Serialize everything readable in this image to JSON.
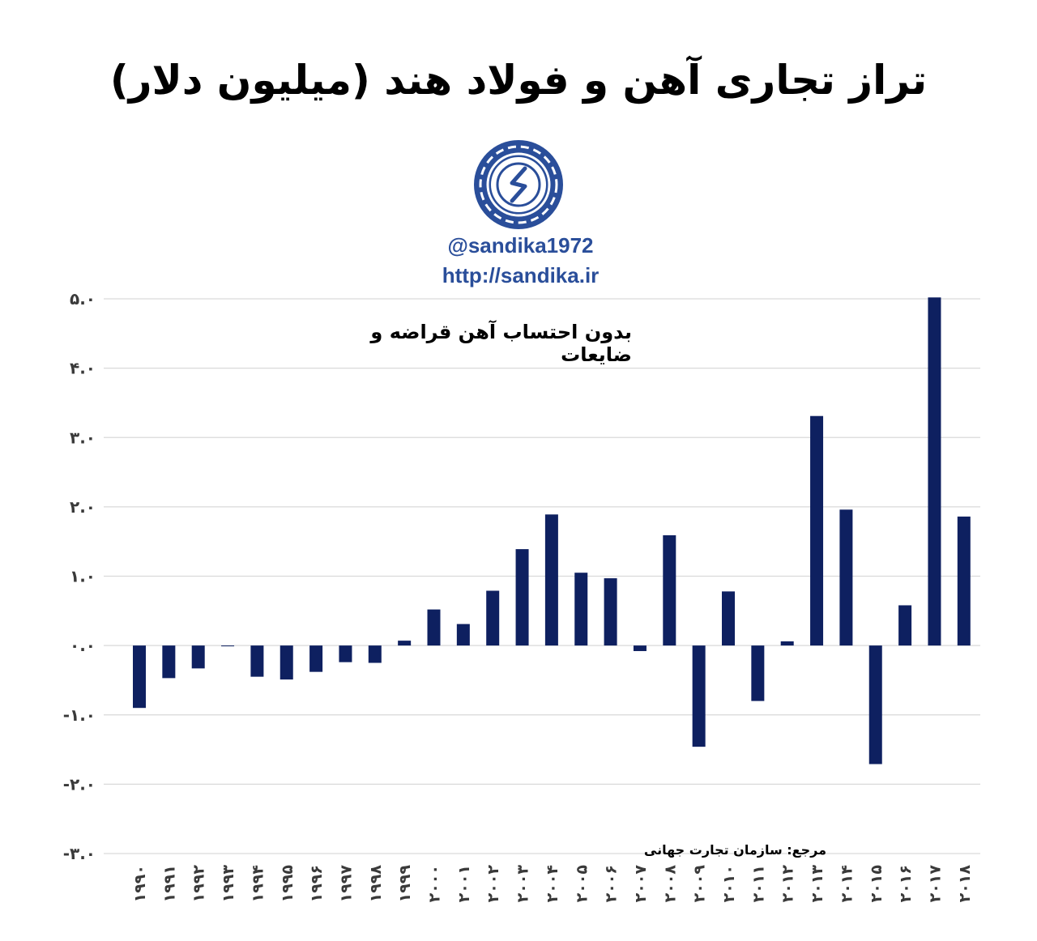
{
  "title": "تراز تجاری آهن و فولاد هند (میلیون دلار)",
  "logo": {
    "handle": "@sandika1972",
    "url": "http://sandika.ir",
    "color": "#2a4e9a"
  },
  "subtitle": "بدون احتساب آهن قراضه و ضایعات",
  "source": "مرجع: سازمان تجارت جهانی",
  "chart_data": {
    "type": "bar",
    "title": "تراز تجاری آهن و فولاد هند (میلیون دلار)",
    "xlabel": "",
    "ylabel": "",
    "ylim": [
      -3,
      5
    ],
    "grid": true,
    "legend": "none",
    "bar_color": "#0e2060",
    "gridline_color": "#d9d9d9",
    "y_ticks": [
      {
        "value": 5,
        "label": "۵.۰"
      },
      {
        "value": 4,
        "label": "۴.۰"
      },
      {
        "value": 3,
        "label": "۳.۰"
      },
      {
        "value": 2,
        "label": "۲.۰"
      },
      {
        "value": 1,
        "label": "۱.۰"
      },
      {
        "value": 0,
        "label": "۰.۰"
      },
      {
        "value": -1,
        "label": "-۱.۰"
      },
      {
        "value": -2,
        "label": "-۲.۰"
      },
      {
        "value": -3,
        "label": "-۳.۰"
      }
    ],
    "categories": [
      "۱۹۹۰",
      "۱۹۹۱",
      "۱۹۹۲",
      "۱۹۹۳",
      "۱۹۹۴",
      "۱۹۹۵",
      "۱۹۹۶",
      "۱۹۹۷",
      "۱۹۹۸",
      "۱۹۹۹",
      "۲۰۰۰",
      "۲۰۰۱",
      "۲۰۰۲",
      "۲۰۰۳",
      "۲۰۰۴",
      "۲۰۰۵",
      "۲۰۰۶",
      "۲۰۰۷",
      "۲۰۰۸",
      "۲۰۰۹",
      "۲۰۱۰",
      "۲۰۱۱",
      "۲۰۱۲",
      "۲۰۱۳",
      "۲۰۱۴",
      "۲۰۱۵",
      "۲۰۱۶",
      "۲۰۱۷",
      "۲۰۱۸"
    ],
    "values": [
      -0.9,
      -0.47,
      -0.33,
      -0.01,
      -0.45,
      -0.49,
      -0.38,
      -0.24,
      -0.25,
      0.07,
      0.52,
      0.31,
      0.79,
      1.39,
      1.89,
      1.05,
      0.97,
      -0.08,
      1.59,
      -1.46,
      0.78,
      -0.8,
      0.06,
      3.31,
      1.96,
      -1.71,
      0.58,
      5.02,
      1.86
    ]
  }
}
